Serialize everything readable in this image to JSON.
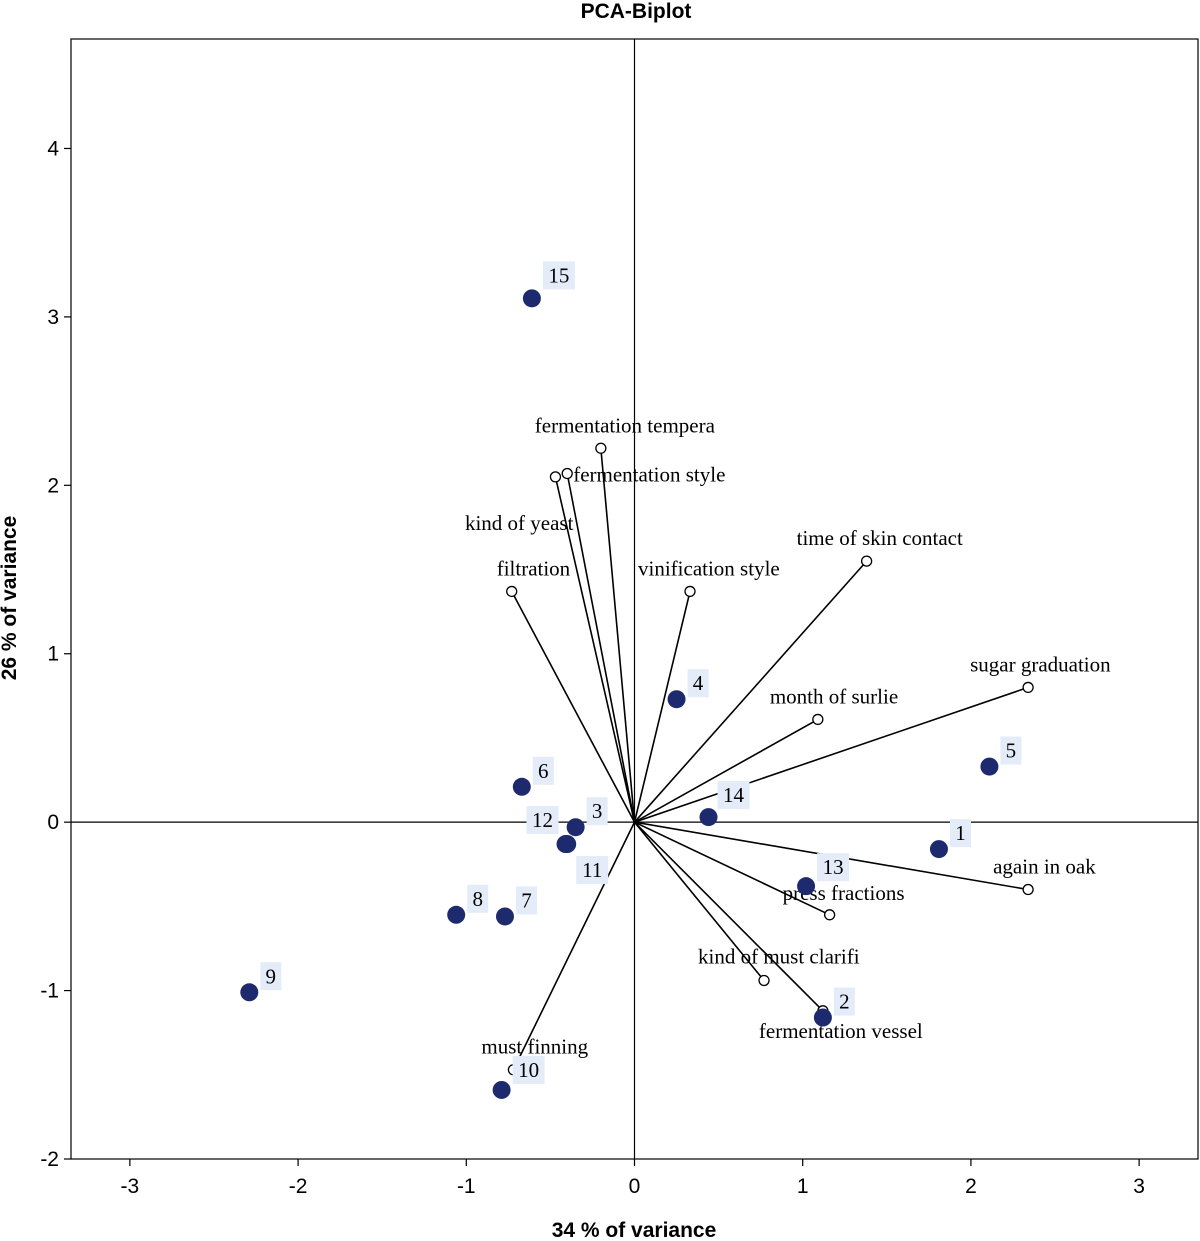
{
  "chart_data": {
    "type": "scatter",
    "title": "PCA-Biplot",
    "xlabel": "34 % of variance",
    "ylabel": "26 % of variance",
    "xlim": [
      -3.35,
      3.35
    ],
    "ylim": [
      -2,
      4.65
    ],
    "xticks": [
      -3,
      -2,
      -1,
      0,
      1,
      2,
      3
    ],
    "yticks": [
      -2,
      -1,
      0,
      1,
      2,
      3,
      4
    ],
    "grid": false,
    "reference_lines": {
      "x": 0,
      "y": 0
    },
    "point_color": "#1e2a6e",
    "label_bg_color": "#e3ecf8",
    "observations": [
      {
        "label": "1",
        "x": 1.81,
        "y": -0.16
      },
      {
        "label": "2",
        "x": 1.12,
        "y": -1.16
      },
      {
        "label": "3",
        "x": -0.35,
        "y": -0.03
      },
      {
        "label": "4",
        "x": 0.25,
        "y": 0.73
      },
      {
        "label": "5",
        "x": 2.11,
        "y": 0.33
      },
      {
        "label": "6",
        "x": -0.67,
        "y": 0.21
      },
      {
        "label": "7",
        "x": -0.77,
        "y": -0.56
      },
      {
        "label": "8",
        "x": -1.06,
        "y": -0.55
      },
      {
        "label": "9",
        "x": -2.29,
        "y": -1.01
      },
      {
        "label": "10",
        "x": -0.79,
        "y": -1.59
      },
      {
        "label": "11",
        "x": -0.4,
        "y": -0.13
      },
      {
        "label": "12",
        "x": -0.41,
        "y": -0.13
      },
      {
        "label": "13",
        "x": 1.02,
        "y": -0.38
      },
      {
        "label": "14",
        "x": 0.44,
        "y": 0.03
      },
      {
        "label": "15",
        "x": -0.61,
        "y": 3.11
      }
    ],
    "variables": [
      {
        "name": "fermentation tempera",
        "x": -0.2,
        "y": 2.22
      },
      {
        "name": "fermentation style",
        "x": -0.4,
        "y": 2.07
      },
      {
        "name": "kind of yeast",
        "x": -0.47,
        "y": 2.05
      },
      {
        "name": "filtration",
        "x": -0.73,
        "y": 1.37
      },
      {
        "name": "vinification style",
        "x": 0.33,
        "y": 1.37
      },
      {
        "name": "time of skin contact",
        "x": 1.38,
        "y": 1.55
      },
      {
        "name": "sugar graduation",
        "x": 2.34,
        "y": 0.8
      },
      {
        "name": "month of surlie",
        "x": 1.09,
        "y": 0.61
      },
      {
        "name": "again in oak",
        "x": 2.34,
        "y": -0.4
      },
      {
        "name": "press fractions",
        "x": 1.16,
        "y": -0.55
      },
      {
        "name": "kind of must clarifi",
        "x": 0.77,
        "y": -0.94
      },
      {
        "name": "fermentation vessel",
        "x": 1.12,
        "y": -1.12
      },
      {
        "name": "must finning",
        "x": -0.72,
        "y": -1.47
      }
    ]
  }
}
